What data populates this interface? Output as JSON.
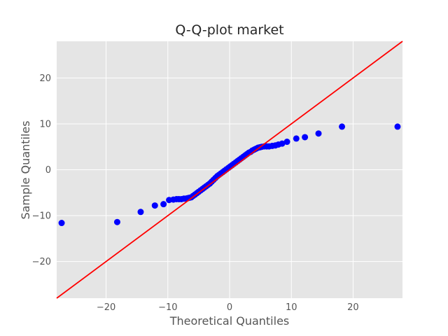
{
  "chart_data": {
    "type": "scatter",
    "title": "Q-Q-plot market",
    "xlabel": "Theoretical Quantiles",
    "ylabel": "Sample Quantiles",
    "xlim": [
      -28,
      28
    ],
    "ylim": [
      -28,
      28
    ],
    "xticks": [
      -20,
      -10,
      0,
      10,
      20
    ],
    "yticks": [
      -20,
      -10,
      0,
      10,
      20
    ],
    "xtick_labels": [
      "−20",
      "−10",
      "0",
      "10",
      "20"
    ],
    "ytick_labels": [
      "−20",
      "−10",
      "0",
      "10",
      "20"
    ],
    "grid": true,
    "colors": {
      "background": "#e5e5e5",
      "grid": "#ffffff",
      "points": "#0000ff",
      "reference_line": "#ff0000"
    },
    "reference_line": {
      "type": "45-degree",
      "points": [
        [
          -28,
          -28
        ],
        [
          28,
          28
        ]
      ]
    },
    "series": [
      {
        "x": [
          -27.2,
          -18.2,
          -14.4,
          -12.1,
          -10.7,
          -9.8,
          -9.1,
          -8.6,
          -8.2,
          -7.8,
          -7.4,
          -7.1,
          -6.8,
          -6.5,
          -6.2,
          -5.9,
          -5.6,
          -5.3,
          -5.0,
          -4.7,
          -4.4,
          -4.1,
          -3.8,
          -3.5,
          -3.2,
          -2.9,
          -2.6,
          -2.3,
          -2.0,
          -1.7,
          -1.4,
          -1.1,
          -0.8,
          -0.5,
          -0.2,
          0.1,
          0.4,
          0.7,
          1.0,
          1.3,
          1.6,
          1.9,
          2.2,
          2.5,
          2.8,
          3.1,
          3.4,
          3.7,
          4.0,
          4.3,
          4.6,
          4.9,
          5.2,
          5.6,
          6.0,
          6.4,
          6.9,
          7.4,
          7.9,
          8.5,
          9.3,
          10.8,
          12.2,
          14.4,
          18.2,
          27.2
        ],
        "y": [
          -11.6,
          -11.4,
          -9.2,
          -7.8,
          -7.5,
          -6.6,
          -6.5,
          -6.4,
          -6.4,
          -6.4,
          -6.3,
          -6.3,
          -6.2,
          -6.1,
          -6.0,
          -5.7,
          -5.4,
          -5.1,
          -4.8,
          -4.5,
          -4.2,
          -3.9,
          -3.6,
          -3.3,
          -3.0,
          -2.6,
          -2.2,
          -1.8,
          -1.4,
          -1.1,
          -0.8,
          -0.5,
          -0.2,
          0.1,
          0.4,
          0.7,
          1.0,
          1.3,
          1.6,
          1.9,
          2.2,
          2.5,
          2.8,
          3.1,
          3.4,
          3.7,
          3.9,
          4.2,
          4.4,
          4.6,
          4.8,
          4.9,
          5.0,
          5.1,
          5.1,
          5.1,
          5.2,
          5.3,
          5.5,
          5.7,
          6.1,
          6.8,
          7.1,
          7.9,
          9.4,
          9.4
        ]
      }
    ]
  }
}
